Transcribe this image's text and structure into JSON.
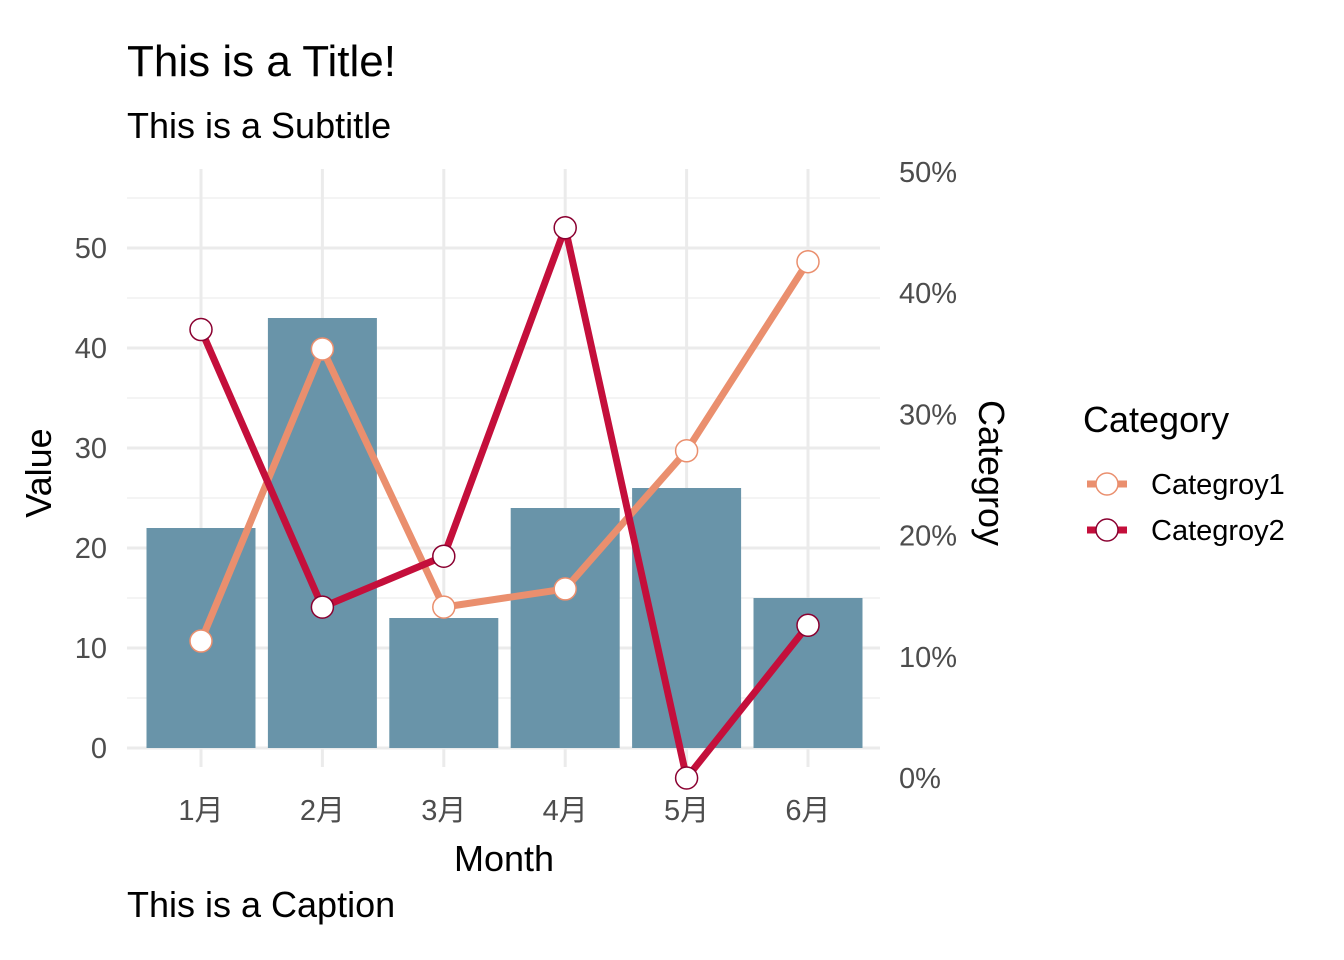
{
  "chart_data": {
    "type": "bar",
    "title": "This is a Title!",
    "subtitle": "This is a Subtitle",
    "caption": "This is a Caption",
    "xlabel": "Month",
    "ylabel": "Value",
    "y2label": "Categroy",
    "categories": [
      "1月",
      "2月",
      "3月",
      "4月",
      "5月",
      "6月"
    ],
    "bar_values": [
      22,
      43,
      13,
      24,
      26,
      15
    ],
    "bar_color": "#6994a9",
    "ylim": [
      0,
      58
    ],
    "yticks": [
      0,
      10,
      20,
      30,
      40,
      50
    ],
    "ytick_labels": [
      "0",
      "10",
      "20",
      "30",
      "40",
      "50"
    ],
    "y2lim": [
      0,
      0.5
    ],
    "y2ticks": [
      0,
      0.1,
      0.2,
      0.3,
      0.4,
      0.5
    ],
    "y2tick_labels": [
      "0%",
      "10%",
      "20%",
      "30%",
      "40%",
      "50%"
    ],
    "grid": true,
    "legend": {
      "title": "Category",
      "position": "right",
      "entries": [
        "Categroy1",
        "Categroy2"
      ]
    },
    "series": [
      {
        "name": "Categroy1",
        "axis": "secondary",
        "color": "#ea8f6e",
        "values": [
          0.113,
          0.354,
          0.141,
          0.156,
          0.27,
          0.426
        ]
      },
      {
        "name": "Categroy2",
        "axis": "secondary",
        "color": "#c40f3b",
        "values": [
          0.37,
          0.141,
          0.183,
          0.454,
          0.0,
          0.126
        ]
      }
    ]
  }
}
